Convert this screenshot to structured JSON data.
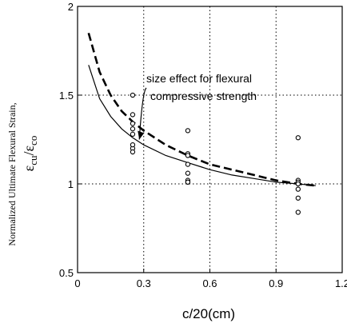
{
  "chart_data": {
    "type": "scatter",
    "title": "",
    "xlabel": "c/20(cm)",
    "ylabel_line1": "Normalized Ultimate Flexural Strain,",
    "ylabel_line2_main": "ε",
    "ylabel_line2_sub1": "cu",
    "ylabel_line2_sep": "/ε",
    "ylabel_line2_sub2": "co",
    "xlim": [
      0,
      1.2
    ],
    "ylim": [
      0.5,
      2
    ],
    "x_ticks": [
      0,
      0.3,
      0.6,
      0.9,
      1.2
    ],
    "x_tick_labels": [
      "0",
      "0.3",
      "0.6",
      "0.9",
      "1.2"
    ],
    "y_ticks": [
      0.5,
      1,
      1.5,
      2
    ],
    "y_tick_labels": [
      "0.5",
      "1",
      "1.5",
      "2"
    ],
    "grid": "dotted",
    "annotation": {
      "line1": "size effect  for flexural",
      "line2": "compressive strength",
      "arrow_to": [
        0.28,
        1.25
      ]
    },
    "series": [
      {
        "kind": "points",
        "marker": "open-circle",
        "x": [
          0.25,
          0.25,
          0.25,
          0.25,
          0.25,
          0.25,
          0.25,
          0.25,
          0.5,
          0.5,
          0.5,
          0.5,
          0.5,
          0.5,
          0.5,
          0.5,
          1.0,
          1.0,
          1.0,
          1.0,
          1.0,
          1.0,
          1.0
        ],
        "y": [
          1.5,
          1.39,
          1.34,
          1.31,
          1.28,
          1.2,
          1.18,
          1.22,
          1.3,
          1.17,
          1.11,
          1.06,
          1.02,
          1.01,
          1.01,
          1.16,
          1.26,
          1.02,
          1.01,
          1.0,
          0.97,
          0.92,
          0.84
        ]
      },
      {
        "kind": "dashed-curve",
        "x": [
          0.05,
          0.1,
          0.15,
          0.2,
          0.25,
          0.3,
          0.4,
          0.5,
          0.6,
          0.7,
          0.8,
          0.9,
          1.0,
          1.08
        ],
        "y": [
          1.85,
          1.63,
          1.5,
          1.41,
          1.35,
          1.3,
          1.22,
          1.16,
          1.11,
          1.08,
          1.05,
          1.02,
          1.0,
          0.99
        ]
      },
      {
        "kind": "solid-curve",
        "x": [
          0.05,
          0.1,
          0.15,
          0.2,
          0.25,
          0.3,
          0.4,
          0.5,
          0.6,
          0.7,
          0.8,
          0.9,
          1.0,
          1.08
        ],
        "y": [
          1.67,
          1.48,
          1.38,
          1.31,
          1.26,
          1.22,
          1.16,
          1.12,
          1.08,
          1.05,
          1.03,
          1.01,
          1.0,
          0.99
        ]
      }
    ]
  }
}
